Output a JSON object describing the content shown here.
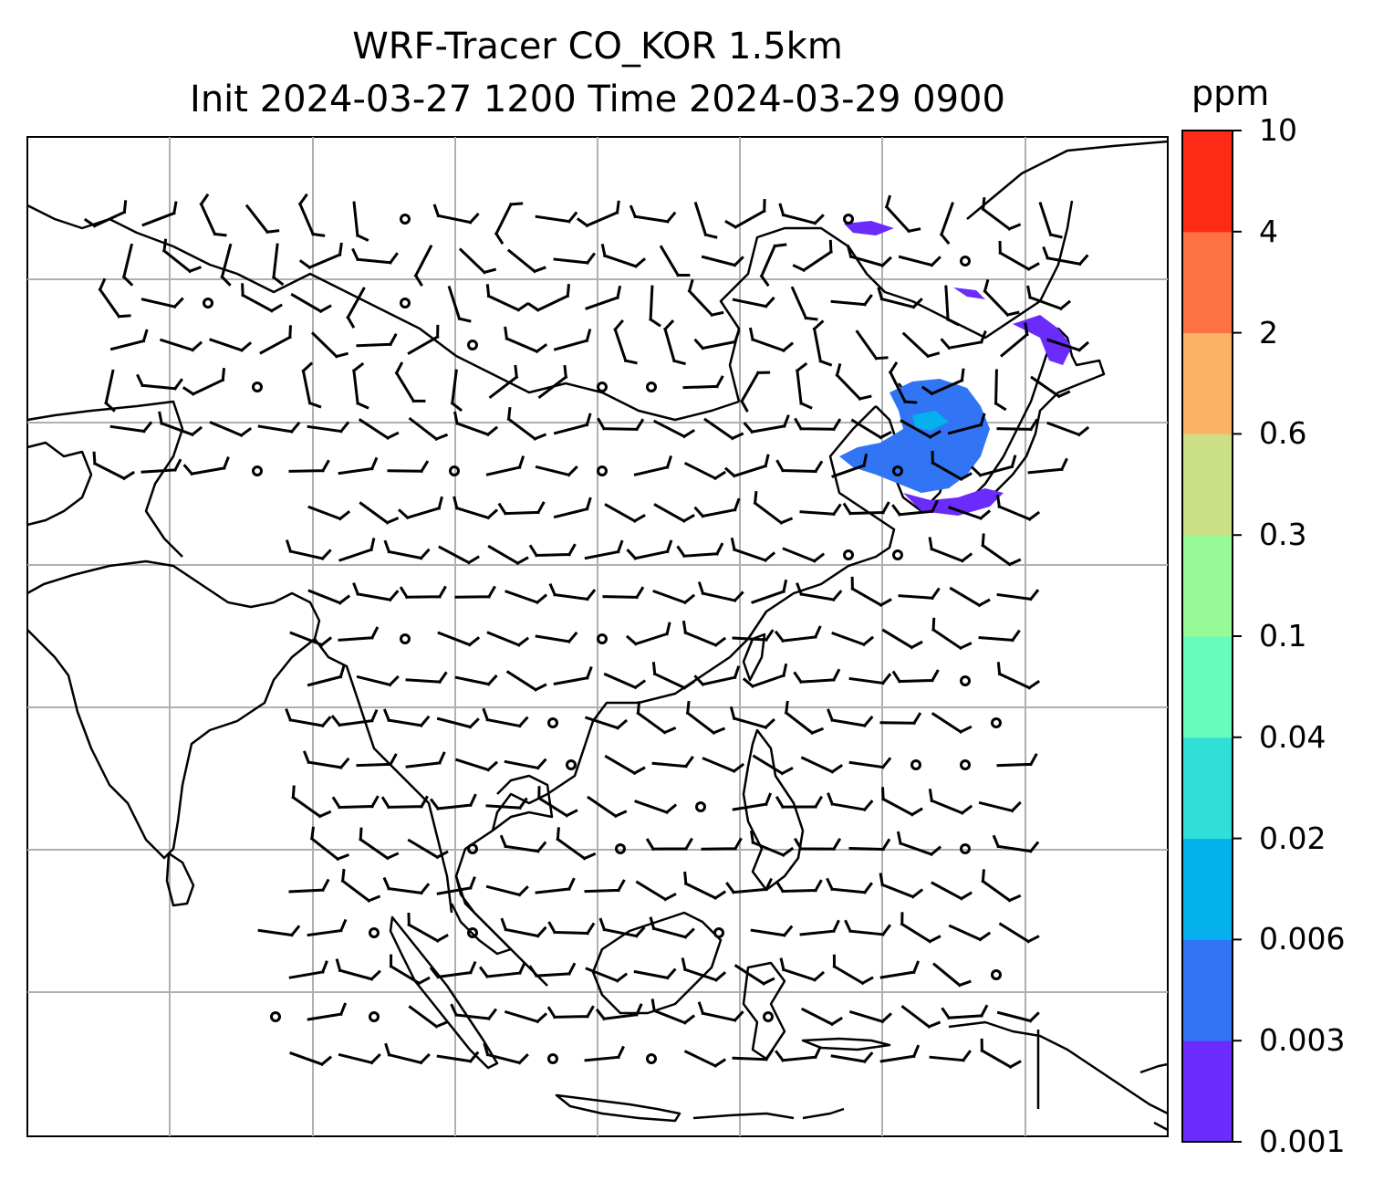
{
  "figure": {
    "title_line1": "WRF-Tracer CO_KOR 1.5km",
    "title_line2": "Init 2024-03-27 1200 Time 2024-03-29 0900"
  },
  "colorbar": {
    "unit": "ppm",
    "levels": [
      "0.001",
      "0.003",
      "0.006",
      "0.02",
      "0.04",
      "0.1",
      "0.3",
      "0.6",
      "2",
      "4",
      "10"
    ],
    "colors": [
      "#6a2bfb",
      "#3175f5",
      "#05b1ed",
      "#30e0d8",
      "#66fcbb",
      "#97fa98",
      "#cbe085",
      "#fdb166",
      "#fe7143",
      "#fd2b16"
    ]
  },
  "map": {
    "gridlines": true,
    "coastlines": true,
    "wind_barbs": true,
    "tracer_plume_location": "Korea / East China Sea region, northeast"
  }
}
